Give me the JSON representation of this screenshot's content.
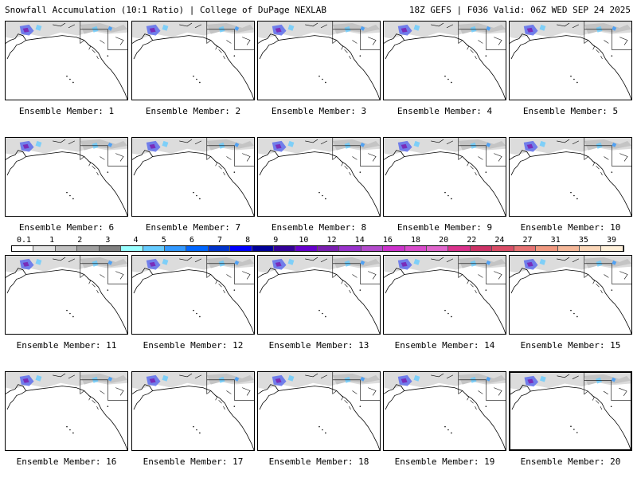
{
  "header": {
    "title_left": "Snowfall Accumulation (10:1 Ratio) | College of DuPage NEXLAB",
    "title_right": "18Z GEFS | F036 Valid: 06Z WED SEP 24 2025"
  },
  "members": [
    {
      "label": "Ensemble Member: 1"
    },
    {
      "label": "Ensemble Member: 2"
    },
    {
      "label": "Ensemble Member: 3"
    },
    {
      "label": "Ensemble Member: 4"
    },
    {
      "label": "Ensemble Member: 5"
    },
    {
      "label": "Ensemble Member: 6"
    },
    {
      "label": "Ensemble Member: 7"
    },
    {
      "label": "Ensemble Member: 8"
    },
    {
      "label": "Ensemble Member: 9"
    },
    {
      "label": "Ensemble Member: 10"
    },
    {
      "label": "Ensemble Member: 11"
    },
    {
      "label": "Ensemble Member: 12"
    },
    {
      "label": "Ensemble Member: 13"
    },
    {
      "label": "Ensemble Member: 14"
    },
    {
      "label": "Ensemble Member: 15"
    },
    {
      "label": "Ensemble Member: 16"
    },
    {
      "label": "Ensemble Member: 17"
    },
    {
      "label": "Ensemble Member: 18"
    },
    {
      "label": "Ensemble Member: 19"
    },
    {
      "label": "Ensemble Member: 20"
    }
  ],
  "colorbar": {
    "labels": [
      "0.1",
      "1",
      "2",
      "3",
      "4",
      "5",
      "6",
      "7",
      "8",
      "9",
      "10",
      "12",
      "14",
      "16",
      "18",
      "20",
      "22",
      "24",
      "27",
      "31",
      "35",
      "39"
    ],
    "colors": [
      "#ffffff",
      "#e0e0e0",
      "#c0c0c0",
      "#a0a0a0",
      "#808080",
      "#99ffff",
      "#66ccff",
      "#3399ff",
      "#0066ff",
      "#0033cc",
      "#0000ff",
      "#000099",
      "#330099",
      "#6600cc",
      "#7a1fb0",
      "#9933cc",
      "#b34ccc",
      "#cc33cc",
      "#d94ccc",
      "#e066cc",
      "#d9338c",
      "#cc3366",
      "#d94d66",
      "#e67373",
      "#f09980",
      "#f5b899",
      "#fad6b8",
      "#fff0d9"
    ]
  }
}
